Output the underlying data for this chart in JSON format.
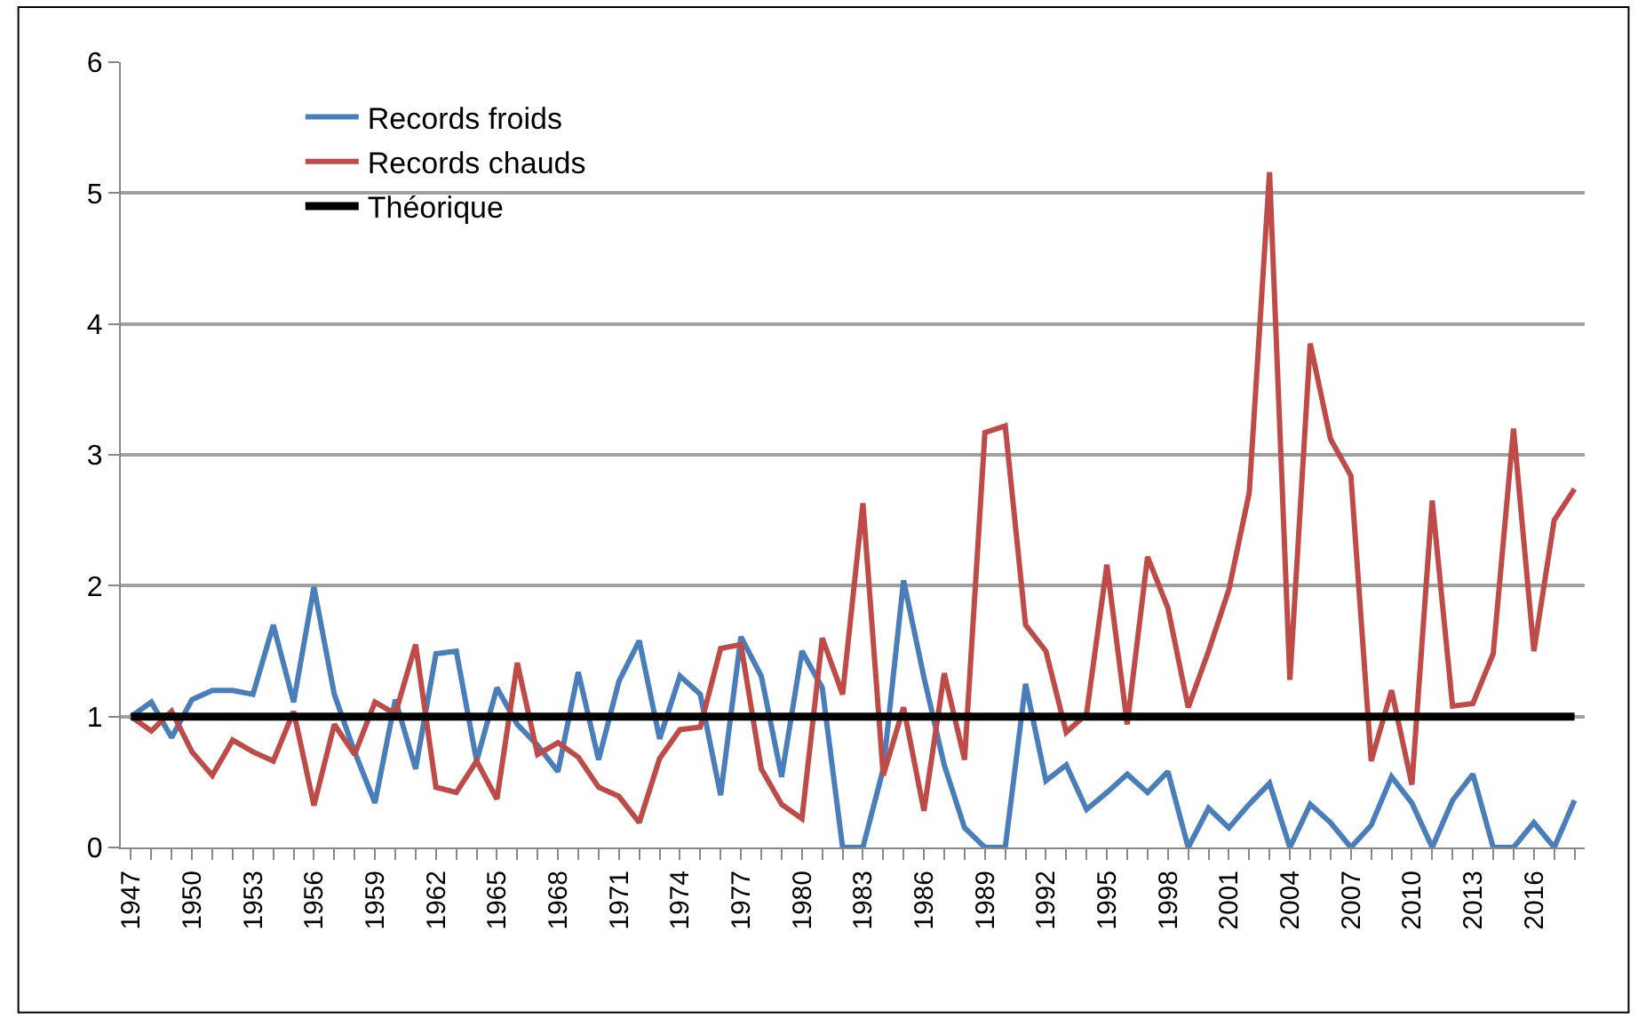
{
  "chart_data": {
    "type": "line",
    "x": [
      1947,
      1948,
      1949,
      1950,
      1951,
      1952,
      1953,
      1954,
      1955,
      1956,
      1957,
      1958,
      1959,
      1960,
      1961,
      1962,
      1963,
      1964,
      1965,
      1966,
      1967,
      1968,
      1969,
      1970,
      1971,
      1972,
      1973,
      1974,
      1975,
      1976,
      1977,
      1978,
      1979,
      1980,
      1981,
      1982,
      1983,
      1984,
      1985,
      1986,
      1987,
      1988,
      1989,
      1990,
      1991,
      1992,
      1993,
      1994,
      1995,
      1996,
      1997,
      1998,
      1999,
      2000,
      2001,
      2002,
      2003,
      2004,
      2005,
      2006,
      2007,
      2008,
      2009,
      2010,
      2011,
      2012,
      2013,
      2014,
      2015,
      2016,
      2017,
      2018
    ],
    "series": [
      {
        "name": "Records froids",
        "color": "#4a7ebb",
        "values": [
          1.0,
          1.11,
          0.84,
          1.13,
          1.2,
          1.2,
          1.17,
          1.7,
          1.11,
          1.99,
          1.17,
          0.73,
          0.34,
          1.13,
          0.6,
          1.48,
          1.5,
          0.66,
          1.22,
          0.94,
          0.78,
          0.58,
          1.34,
          0.67,
          1.27,
          1.58,
          0.83,
          1.31,
          1.17,
          0.4,
          1.61,
          1.31,
          0.54,
          1.5,
          1.22,
          0,
          0,
          0.6,
          2.04,
          1.3,
          0.63,
          0.15,
          0,
          0,
          1.25,
          0.51,
          0.63,
          0.29,
          0.42,
          0.56,
          0.42,
          0.58,
          0,
          0.3,
          0.15,
          0.33,
          0.49,
          0,
          0.33,
          0.19,
          0,
          0.17,
          0.54,
          0.34,
          0,
          0.36,
          0.56,
          0,
          0,
          0.19,
          0,
          0.36
        ]
      },
      {
        "name": "Records chauds",
        "color": "#be4b48",
        "values": [
          1.0,
          0.89,
          1.04,
          0.73,
          0.55,
          0.82,
          0.73,
          0.66,
          1.04,
          0.32,
          0.94,
          0.71,
          1.11,
          1.02,
          1.55,
          0.46,
          0.42,
          0.66,
          0.37,
          1.41,
          0.71,
          0.8,
          0.69,
          0.46,
          0.39,
          0.19,
          0.68,
          0.9,
          0.92,
          1.52,
          1.55,
          0.6,
          0.33,
          0.22,
          1.6,
          1.17,
          2.63,
          0.55,
          1.07,
          0.28,
          1.33,
          0.67,
          3.17,
          3.22,
          1.7,
          1.5,
          0.88,
          1.02,
          2.16,
          0.94,
          2.22,
          1.83,
          1.07,
          1.5,
          1.97,
          2.71,
          5.16,
          1.28,
          3.85,
          3.12,
          2.84,
          0.66,
          1.2,
          0.48,
          2.65,
          1.08,
          1.1,
          1.48,
          3.2,
          1.5,
          2.5,
          2.74
        ]
      },
      {
        "name": "Théorique",
        "color": "#000000",
        "x": [
          1947,
          2018
        ],
        "values": [
          1,
          1
        ]
      }
    ],
    "xlim": [
      1946.5,
      2018.5
    ],
    "xticks": [
      1947,
      1950,
      1953,
      1956,
      1959,
      1962,
      1965,
      1968,
      1971,
      1974,
      1977,
      1980,
      1983,
      1986,
      1989,
      1992,
      1995,
      1998,
      2001,
      2004,
      2007,
      2010,
      2013,
      2016
    ],
    "ylim": [
      0,
      6
    ],
    "yticks": [
      0,
      1,
      2,
      3,
      4,
      5,
      6
    ],
    "grid": "y",
    "legend": "top left",
    "marker": "none",
    "line_style": "solid"
  }
}
